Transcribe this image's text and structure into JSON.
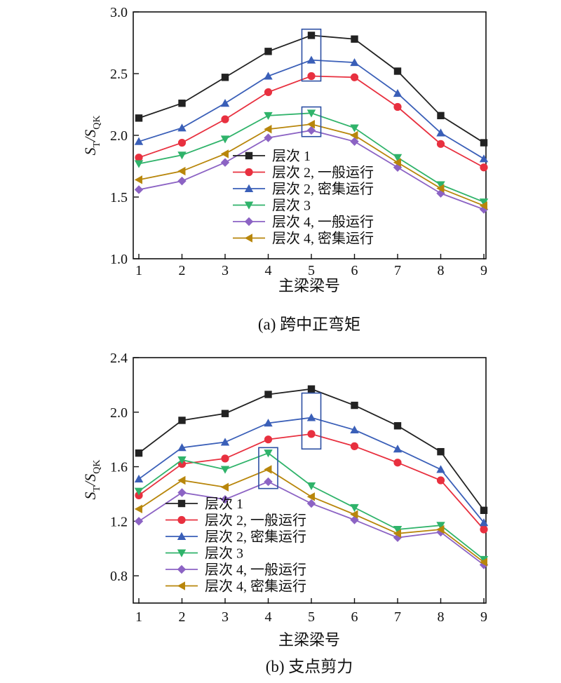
{
  "chart_data": [
    {
      "type": "line",
      "caption": "(a) 跨中正弯矩",
      "xlabel": "主梁梁号",
      "ylabel": {
        "base": "S",
        "sub1": "T",
        "mid": "/S",
        "sub2": "QK"
      },
      "x": [
        1,
        2,
        3,
        4,
        5,
        6,
        7,
        8,
        9
      ],
      "xlim": [
        1,
        9
      ],
      "ylim": [
        1.0,
        3.0
      ],
      "yticks": [
        "1.0",
        "1.5",
        "2.0",
        "2.5",
        "3.0"
      ],
      "series": [
        {
          "name": "层次 1",
          "marker": "square",
          "color": "#222222",
          "values": [
            2.14,
            2.26,
            2.47,
            2.68,
            2.81,
            2.78,
            2.52,
            2.16,
            1.94
          ]
        },
        {
          "name": "层次 2, 一般运行",
          "marker": "circle",
          "color": "#e8303f",
          "values": [
            1.82,
            1.94,
            2.13,
            2.35,
            2.48,
            2.47,
            2.23,
            1.93,
            1.74
          ]
        },
        {
          "name": "层次 2, 密集运行",
          "marker": "triangle-up",
          "color": "#3a5fb8",
          "values": [
            1.95,
            2.06,
            2.26,
            2.48,
            2.61,
            2.59,
            2.34,
            2.02,
            1.81
          ]
        },
        {
          "name": "层次 3",
          "marker": "triangle-down",
          "color": "#2fb36a",
          "values": [
            1.77,
            1.84,
            1.97,
            2.16,
            2.18,
            2.06,
            1.82,
            1.6,
            1.46
          ]
        },
        {
          "name": "层次 4, 一般运行",
          "marker": "diamond",
          "color": "#8c63c4",
          "values": [
            1.56,
            1.63,
            1.78,
            1.98,
            2.04,
            1.95,
            1.74,
            1.53,
            1.4
          ]
        },
        {
          "name": "层次 4, 密集运行",
          "marker": "triangle-left",
          "color": "#b8860b",
          "values": [
            1.64,
            1.71,
            1.85,
            2.05,
            2.09,
            2.0,
            1.78,
            1.57,
            1.43
          ]
        }
      ],
      "highlight_boxes": [
        {
          "x_from": 4.78,
          "x_to": 5.22,
          "y_from": 2.44,
          "y_to": 2.86
        },
        {
          "x_from": 4.78,
          "x_to": 5.22,
          "y_from": 1.99,
          "y_to": 2.23
        }
      ],
      "legend": "center-bottom"
    },
    {
      "type": "line",
      "caption": "(b) 支点剪力",
      "xlabel": "主梁梁号",
      "ylabel": {
        "base": "S",
        "sub1": "T",
        "mid": "/S",
        "sub2": "QK"
      },
      "x": [
        1,
        2,
        3,
        4,
        5,
        6,
        7,
        8,
        9
      ],
      "xlim": [
        1,
        9
      ],
      "ylim": [
        0.6,
        2.4
      ],
      "yticks": [
        "0.8",
        "1.2",
        "1.6",
        "2.0",
        "2.4"
      ],
      "series": [
        {
          "name": "层次 1",
          "marker": "square",
          "color": "#222222",
          "values": [
            1.7,
            1.94,
            1.99,
            2.13,
            2.17,
            2.05,
            1.9,
            1.71,
            1.28
          ]
        },
        {
          "name": "层次 2, 一般运行",
          "marker": "circle",
          "color": "#e8303f",
          "values": [
            1.39,
            1.62,
            1.66,
            1.8,
            1.84,
            1.75,
            1.63,
            1.5,
            1.14
          ]
        },
        {
          "name": "层次 2, 密集运行",
          "marker": "triangle-up",
          "color": "#3a5fb8",
          "values": [
            1.51,
            1.74,
            1.78,
            1.92,
            1.96,
            1.87,
            1.73,
            1.58,
            1.19
          ]
        },
        {
          "name": "层次 3",
          "marker": "triangle-down",
          "color": "#2fb36a",
          "values": [
            1.42,
            1.65,
            1.58,
            1.7,
            1.46,
            1.3,
            1.14,
            1.17,
            0.92
          ]
        },
        {
          "name": "层次 4, 一般运行",
          "marker": "diamond",
          "color": "#8c63c4",
          "values": [
            1.2,
            1.41,
            1.36,
            1.49,
            1.33,
            1.21,
            1.08,
            1.12,
            0.88
          ]
        },
        {
          "name": "层次 4, 密集运行",
          "marker": "triangle-left",
          "color": "#b8860b",
          "values": [
            1.29,
            1.5,
            1.45,
            1.58,
            1.38,
            1.25,
            1.11,
            1.14,
            0.9
          ]
        }
      ],
      "highlight_boxes": [
        {
          "x_from": 4.78,
          "x_to": 5.22,
          "y_from": 1.73,
          "y_to": 2.14
        },
        {
          "x_from": 3.78,
          "x_to": 4.22,
          "y_from": 1.44,
          "y_to": 1.74
        }
      ],
      "legend": "left-bottom"
    }
  ]
}
